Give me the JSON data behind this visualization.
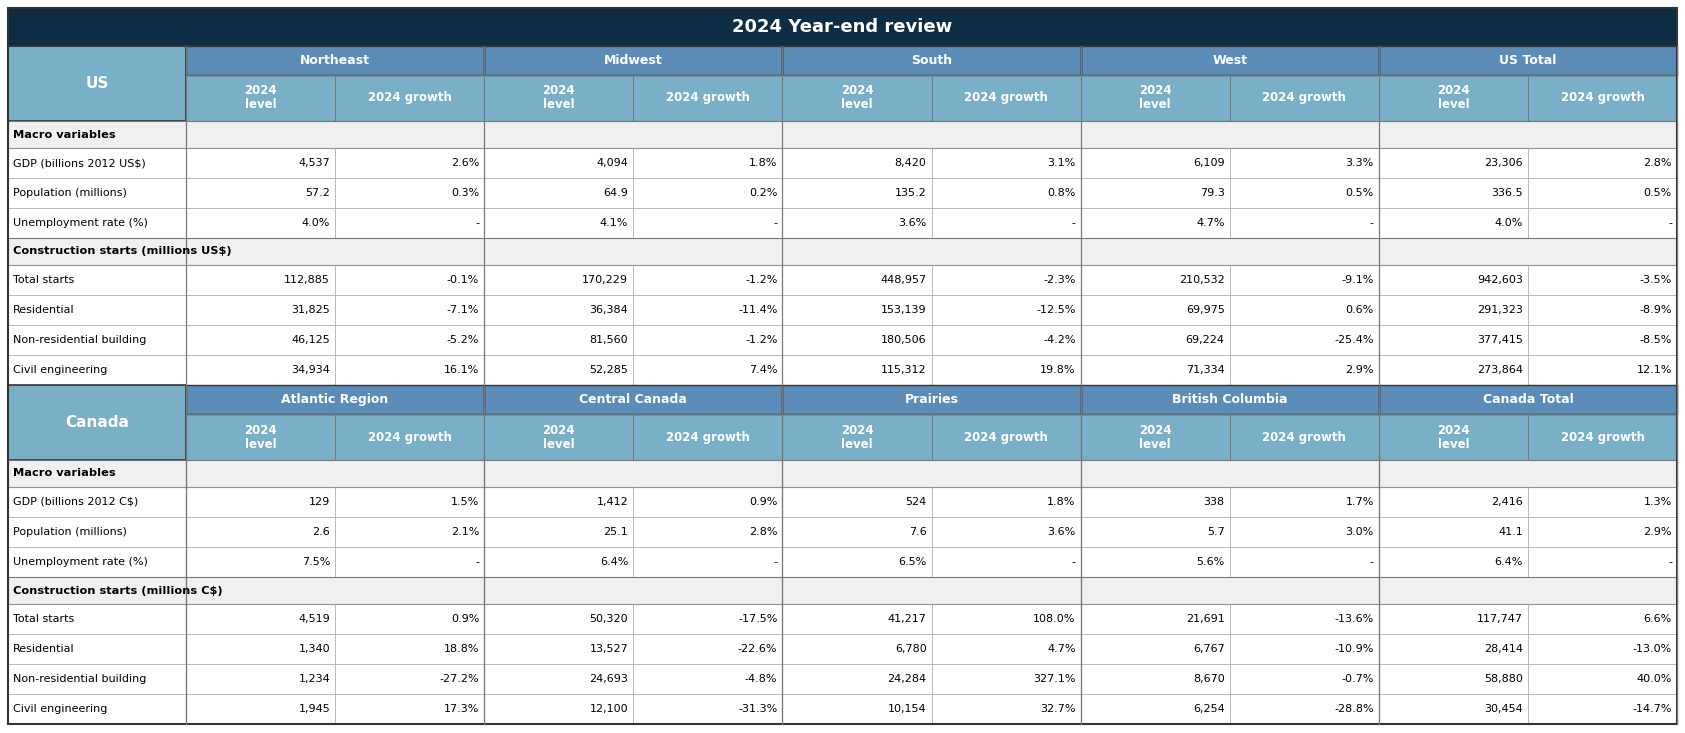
{
  "title": "2024 Year-end review",
  "title_bg": "#0d2d45",
  "title_color": "#ffffff",
  "header_bg": "#5b8db8",
  "header_color": "#ffffff",
  "subheader_bg": "#7aafc8",
  "subheader_color": "#ffffff",
  "row_label_bg": "#7aafc8",
  "section_header_bg": "#f0f0f0",
  "data_bg_even": "#ffffff",
  "data_bg_odd": "#ffffff",
  "border_dark": "#333333",
  "border_mid": "#777777",
  "border_light": "#aaaaaa",
  "us_sections": {
    "region_headers": [
      "Northeast",
      "Midwest",
      "South",
      "West",
      "US Total"
    ],
    "row_label": "US",
    "sections": [
      {
        "section_name": "Macro variables",
        "rows": [
          {
            "label": "GDP (billions 2012 US$)",
            "data": [
              "4,537",
              "2.6%",
              "4,094",
              "1.8%",
              "8,420",
              "3.1%",
              "6,109",
              "3.3%",
              "23,306",
              "2.8%"
            ]
          },
          {
            "label": "Population (millions)",
            "data": [
              "57.2",
              "0.3%",
              "64.9",
              "0.2%",
              "135.2",
              "0.8%",
              "79.3",
              "0.5%",
              "336.5",
              "0.5%"
            ]
          },
          {
            "label": "Unemployment rate (%)",
            "data": [
              "4.0%",
              "-",
              "4.1%",
              "-",
              "3.6%",
              "-",
              "4.7%",
              "-",
              "4.0%",
              "-"
            ]
          }
        ]
      },
      {
        "section_name": "Construction starts (millions US$)",
        "rows": [
          {
            "label": "Total starts",
            "data": [
              "112,885",
              "-0.1%",
              "170,229",
              "-1.2%",
              "448,957",
              "-2.3%",
              "210,532",
              "-9.1%",
              "942,603",
              "-3.5%"
            ]
          },
          {
            "label": "Residential",
            "data": [
              "31,825",
              "-7.1%",
              "36,384",
              "-11.4%",
              "153,139",
              "-12.5%",
              "69,975",
              "0.6%",
              "291,323",
              "-8.9%"
            ]
          },
          {
            "label": "Non-residential building",
            "data": [
              "46,125",
              "-5.2%",
              "81,560",
              "-1.2%",
              "180,506",
              "-4.2%",
              "69,224",
              "-25.4%",
              "377,415",
              "-8.5%"
            ]
          },
          {
            "label": "Civil engineering",
            "data": [
              "34,934",
              "16.1%",
              "52,285",
              "7.4%",
              "115,312",
              "19.8%",
              "71,334",
              "2.9%",
              "273,864",
              "12.1%"
            ]
          }
        ]
      }
    ]
  },
  "canada_sections": {
    "region_headers": [
      "Atlantic Region",
      "Central Canada",
      "Prairies",
      "British Columbia",
      "Canada Total"
    ],
    "row_label": "Canada",
    "sections": [
      {
        "section_name": "Macro variables",
        "rows": [
          {
            "label": "GDP (billions 2012 C$)",
            "data": [
              "129",
              "1.5%",
              "1,412",
              "0.9%",
              "524",
              "1.8%",
              "338",
              "1.7%",
              "2,416",
              "1.3%"
            ]
          },
          {
            "label": "Population (millions)",
            "data": [
              "2.6",
              "2.1%",
              "25.1",
              "2.8%",
              "7.6",
              "3.6%",
              "5.7",
              "3.0%",
              "41.1",
              "2.9%"
            ]
          },
          {
            "label": "Unemployment rate (%)",
            "data": [
              "7.5%",
              "-",
              "6.4%",
              "-",
              "6.5%",
              "-",
              "5.6%",
              "-",
              "6.4%",
              "-"
            ]
          }
        ]
      },
      {
        "section_name": "Construction starts (millions C$)",
        "rows": [
          {
            "label": "Total starts",
            "data": [
              "4,519",
              "0.9%",
              "50,320",
              "-17.5%",
              "41,217",
              "108.0%",
              "21,691",
              "-13.6%",
              "117,747",
              "6.6%"
            ]
          },
          {
            "label": "Residential",
            "data": [
              "1,340",
              "18.8%",
              "13,527",
              "-22.6%",
              "6,780",
              "4.7%",
              "6,767",
              "-10.9%",
              "28,414",
              "-13.0%"
            ]
          },
          {
            "label": "Non-residential building",
            "data": [
              "1,234",
              "-27.2%",
              "24,693",
              "-4.8%",
              "24,284",
              "327.1%",
              "8,670",
              "-0.7%",
              "58,880",
              "40.0%"
            ]
          },
          {
            "label": "Civil engineering",
            "data": [
              "1,945",
              "17.3%",
              "12,100",
              "-31.3%",
              "10,154",
              "32.7%",
              "6,254",
              "-28.8%",
              "30,454",
              "-14.7%"
            ]
          }
        ]
      }
    ]
  }
}
